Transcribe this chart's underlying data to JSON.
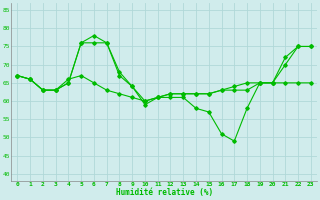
{
  "xlabel": "Humidité relative (%)",
  "bg_color": "#d0ecec",
  "grid_color": "#b0d8d8",
  "line_color": "#00bb00",
  "x_ticks": [
    0,
    1,
    2,
    3,
    4,
    5,
    6,
    7,
    8,
    9,
    10,
    11,
    12,
    13,
    14,
    15,
    16,
    17,
    18,
    19,
    20,
    21,
    22,
    23
  ],
  "y_ticks": [
    40,
    45,
    50,
    55,
    60,
    65,
    70,
    75,
    80,
    85
  ],
  "ylim": [
    38,
    87
  ],
  "xlim": [
    -0.5,
    23.5
  ],
  "line1": [
    67,
    66,
    63,
    63,
    65,
    76,
    78,
    76,
    68,
    64,
    59,
    61,
    61,
    61,
    58,
    57,
    51,
    49,
    58,
    65,
    65,
    72,
    75,
    75
  ],
  "line2": [
    67,
    66,
    63,
    63,
    66,
    67,
    65,
    63,
    62,
    61,
    60,
    61,
    62,
    62,
    62,
    62,
    63,
    63,
    63,
    65,
    65,
    65,
    65,
    65
  ],
  "line3": [
    67,
    66,
    63,
    63,
    65,
    76,
    76,
    76,
    67,
    64,
    60,
    61,
    62,
    62,
    62,
    62,
    63,
    64,
    65,
    65,
    65,
    70,
    75,
    75
  ]
}
